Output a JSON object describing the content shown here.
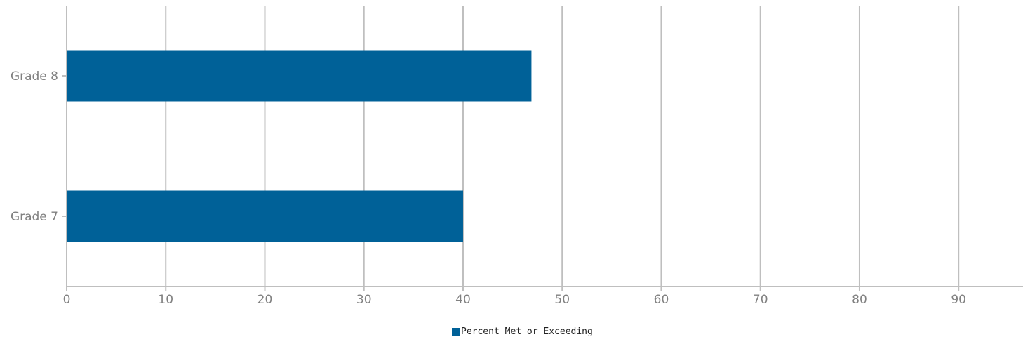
{
  "chart_data": {
    "type": "bar",
    "orientation": "horizontal",
    "categories": [
      "Grade 8",
      "Grade 7"
    ],
    "series": [
      {
        "name": "Percent Met or Exceeding",
        "values": [
          46.9,
          40.0
        ],
        "color": "#006198"
      }
    ],
    "xlim": [
      0,
      96.5
    ],
    "xticks": [
      0,
      10,
      20,
      30,
      40,
      50,
      60,
      70,
      80,
      90
    ],
    "grid": true,
    "legend_position": "bottom-center",
    "title": "",
    "xlabel": "",
    "ylabel": ""
  }
}
